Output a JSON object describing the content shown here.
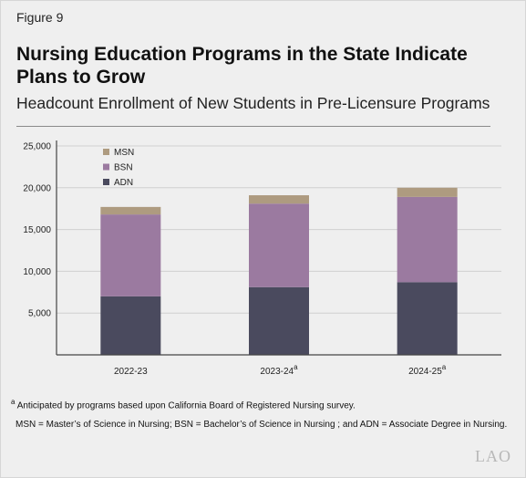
{
  "figure_label": "Figure 9",
  "title": "Nursing Education Programs in the State Indicate Plans to Grow",
  "subtitle": "Headcount Enrollment of New Students in Pre-Licensure Programs",
  "footnote": {
    "marker": "a",
    "text": "Anticipated by programs based upon California Board of Registered Nursing survey."
  },
  "abbreviations": "MSN = Master’s of Science in Nursing; BSN = Bachelor’s of Science in Nursing ; and ADN = Associate Degree in Nursing.",
  "logo": "LAO",
  "colors": {
    "ADN": "#4a4a5e",
    "BSN": "#9b7aa0",
    "MSN": "#ae9b80",
    "gridline": "#d0d0d0",
    "axis": "#444444"
  },
  "chart_data": {
    "type": "bar",
    "stacked": true,
    "categories": [
      "2022-23",
      "2023-24",
      "2024-25"
    ],
    "category_superscripts": [
      "",
      "a",
      "a"
    ],
    "series": [
      {
        "name": "ADN",
        "values": [
          7000,
          8100,
          8700
        ]
      },
      {
        "name": "BSN",
        "values": [
          9800,
          10000,
          10200
        ]
      },
      {
        "name": "MSN",
        "values": [
          900,
          1000,
          1100
        ]
      }
    ],
    "legend_order": [
      "MSN",
      "BSN",
      "ADN"
    ],
    "ylim": [
      0,
      25000
    ],
    "yticks": [
      5000,
      10000,
      15000,
      20000,
      25000
    ],
    "ytick_labels": [
      "5,000",
      "10,000",
      "15,000",
      "20,000",
      "25,000"
    ],
    "grid": true,
    "legend_position": "top-left"
  }
}
